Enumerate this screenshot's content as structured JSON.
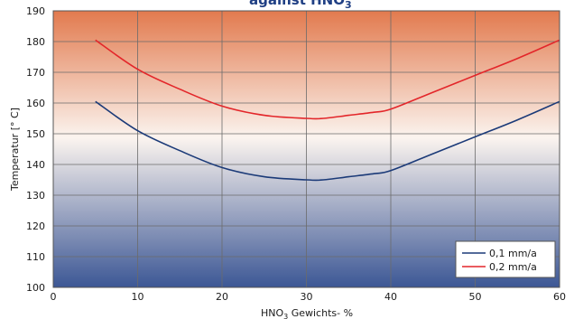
{
  "chart_data": {
    "type": "line",
    "title": {
      "main": "against HNO",
      "sub": "3"
    },
    "xlabel": {
      "prefix": "HNO",
      "sub": "3",
      "suffix": " Gewichts- %"
    },
    "ylabel": "Temperatur [° C]",
    "xlim": [
      0,
      60
    ],
    "ylim": [
      100,
      190
    ],
    "x_ticks": [
      "0",
      "10",
      "20",
      "30",
      "40",
      "50",
      "60"
    ],
    "y_ticks": [
      "100",
      "110",
      "120",
      "130",
      "140",
      "150",
      "160",
      "170",
      "180",
      "190"
    ],
    "grid": true,
    "legend_position": "bottom-right",
    "background": {
      "top_color": "#e27a4e",
      "middle_color": "#fbf4ef",
      "bottom_color": "#3c5795"
    },
    "series": [
      {
        "name": "0,1 mm/a",
        "color": "#1b3a78",
        "x": [
          5,
          10,
          15,
          20,
          25,
          30,
          32,
          35,
          38,
          40,
          45,
          50,
          55,
          60
        ],
        "y": [
          160.5,
          151,
          144.5,
          139,
          136,
          135,
          135,
          136,
          137,
          138,
          143.5,
          149,
          154.5,
          160.5
        ]
      },
      {
        "name": "0,2 mm/a",
        "color": "#e3262a",
        "x": [
          5,
          10,
          15,
          20,
          25,
          30,
          32,
          35,
          38,
          40,
          45,
          50,
          55,
          60
        ],
        "y": [
          180.5,
          171,
          164.5,
          159,
          156,
          155,
          155,
          156,
          157,
          158,
          163.5,
          169,
          174.5,
          180.5
        ]
      }
    ]
  }
}
